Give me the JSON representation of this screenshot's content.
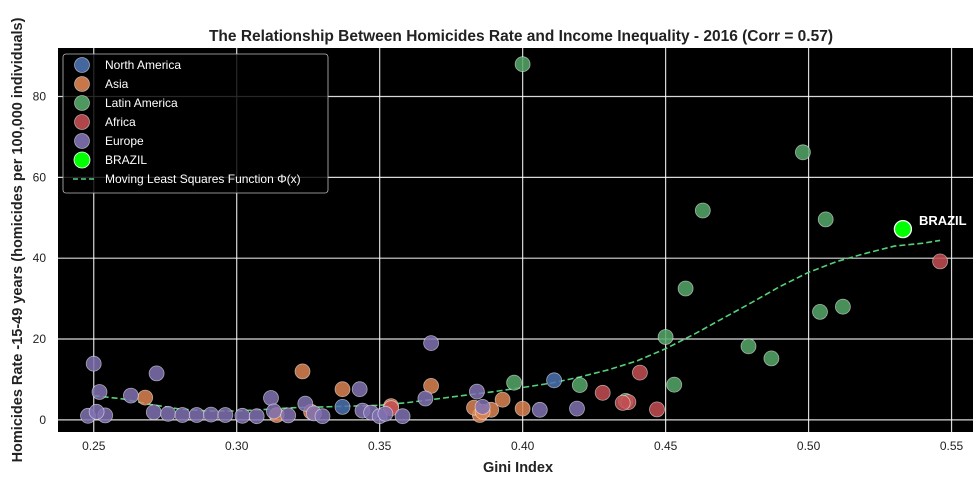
{
  "chart_data": {
    "type": "scatter",
    "title": "The Relationship Between Homicides Rate and Income Inequality - 2016 (Corr = 0.57)",
    "xlabel": "Gini Index",
    "ylabel": "Homicides Rate -15-49 years (homicides per 100,000 individuals)",
    "xlim": [
      0.2375,
      0.5575
    ],
    "ylim": [
      -3,
      92
    ],
    "xticks": [
      0.25,
      0.3,
      0.35,
      0.4,
      0.45,
      0.5,
      0.55
    ],
    "xtick_labels": [
      "0.25",
      "0.30",
      "0.35",
      "0.40",
      "0.45",
      "0.50",
      "0.55"
    ],
    "yticks": [
      0,
      20,
      40,
      60,
      80
    ],
    "ytick_labels": [
      "0",
      "20",
      "40",
      "60",
      "80"
    ],
    "grid": true,
    "background": "#000000",
    "legend_position": "top-left",
    "series": [
      {
        "name": "North America",
        "color": "#4c72b0",
        "points": [
          [
            0.411,
            9.8
          ],
          [
            0.337,
            3.2
          ]
        ]
      },
      {
        "name": "Asia",
        "color": "#dd8452",
        "points": [
          [
            0.268,
            5.5
          ],
          [
            0.323,
            12.0
          ],
          [
            0.337,
            7.6
          ],
          [
            0.368,
            8.4
          ],
          [
            0.385,
            1.2
          ],
          [
            0.393,
            5.0
          ],
          [
            0.4,
            2.8
          ],
          [
            0.389,
            2.5
          ],
          [
            0.314,
            1.2
          ],
          [
            0.326,
            2.0
          ],
          [
            0.354,
            3.4
          ],
          [
            0.383,
            3.0
          ],
          [
            0.386,
            2.0
          ]
        ]
      },
      {
        "name": "Latin America",
        "color": "#55a868",
        "points": [
          [
            0.4,
            88.0
          ],
          [
            0.498,
            66.2
          ],
          [
            0.463,
            51.8
          ],
          [
            0.506,
            49.6
          ],
          [
            0.457,
            32.5
          ],
          [
            0.512,
            28.0
          ],
          [
            0.504,
            26.7
          ],
          [
            0.45,
            20.5
          ],
          [
            0.479,
            18.2
          ],
          [
            0.487,
            15.2
          ],
          [
            0.397,
            9.2
          ],
          [
            0.453,
            8.7
          ],
          [
            0.42,
            8.6
          ],
          [
            0.436,
            4.7
          ]
        ]
      },
      {
        "name": "Africa",
        "color": "#c44e52",
        "points": [
          [
            0.546,
            39.2
          ],
          [
            0.441,
            11.7
          ],
          [
            0.428,
            6.7
          ],
          [
            0.437,
            4.4
          ],
          [
            0.435,
            4.2
          ],
          [
            0.447,
            2.6
          ],
          [
            0.354,
            2.9
          ]
        ]
      },
      {
        "name": "Europe",
        "color": "#8172b3",
        "points": [
          [
            0.25,
            13.9
          ],
          [
            0.252,
            6.9
          ],
          [
            0.263,
            6.0
          ],
          [
            0.272,
            11.5
          ],
          [
            0.254,
            1.1
          ],
          [
            0.248,
            1.0
          ],
          [
            0.251,
            2.0
          ],
          [
            0.271,
            1.9
          ],
          [
            0.276,
            1.5
          ],
          [
            0.281,
            1.2
          ],
          [
            0.286,
            1.2
          ],
          [
            0.291,
            1.3
          ],
          [
            0.296,
            1.2
          ],
          [
            0.302,
            1.0
          ],
          [
            0.307,
            0.9
          ],
          [
            0.312,
            5.4
          ],
          [
            0.313,
            2.1
          ],
          [
            0.318,
            1.1
          ],
          [
            0.324,
            4.0
          ],
          [
            0.327,
            1.6
          ],
          [
            0.33,
            0.9
          ],
          [
            0.343,
            7.6
          ],
          [
            0.344,
            2.3
          ],
          [
            0.347,
            1.8
          ],
          [
            0.35,
            0.9
          ],
          [
            0.352,
            1.5
          ],
          [
            0.358,
            0.9
          ],
          [
            0.366,
            5.3
          ],
          [
            0.368,
            19.0
          ],
          [
            0.384,
            7.0
          ],
          [
            0.386,
            3.2
          ],
          [
            0.406,
            2.5
          ],
          [
            0.419,
            2.8
          ]
        ]
      },
      {
        "name": "BRAZIL",
        "color": "#00ff00",
        "points": [
          [
            0.533,
            47.2
          ]
        ]
      }
    ],
    "curve": {
      "name": "Moving Least Squares Function Φ(x)",
      "color": "#55d07a",
      "style": "dashed",
      "points": [
        [
          0.25,
          6.0
        ],
        [
          0.26,
          5.2
        ],
        [
          0.27,
          3.8
        ],
        [
          0.28,
          2.7
        ],
        [
          0.29,
          2.2
        ],
        [
          0.3,
          2.2
        ],
        [
          0.31,
          2.6
        ],
        [
          0.32,
          3.0
        ],
        [
          0.33,
          3.2
        ],
        [
          0.34,
          3.4
        ],
        [
          0.35,
          3.6
        ],
        [
          0.36,
          4.3
        ],
        [
          0.37,
          5.2
        ],
        [
          0.38,
          6.1
        ],
        [
          0.39,
          7.0
        ],
        [
          0.4,
          8.0
        ],
        [
          0.41,
          9.1
        ],
        [
          0.42,
          10.6
        ],
        [
          0.43,
          12.4
        ],
        [
          0.44,
          14.6
        ],
        [
          0.45,
          17.6
        ],
        [
          0.46,
          21.2
        ],
        [
          0.47,
          25.1
        ],
        [
          0.48,
          29.0
        ],
        [
          0.49,
          33.0
        ],
        [
          0.5,
          36.5
        ],
        [
          0.51,
          39.2
        ],
        [
          0.52,
          41.2
        ],
        [
          0.53,
          43.0
        ],
        [
          0.54,
          43.7
        ],
        [
          0.546,
          44.4
        ]
      ]
    },
    "annotations": [
      {
        "text": "BRAZIL",
        "x": 0.533,
        "y": 47.2
      }
    ],
    "legend": [
      {
        "label": "North America",
        "color": "#4c72b0",
        "kind": "marker"
      },
      {
        "label": "Asia",
        "color": "#dd8452",
        "kind": "marker"
      },
      {
        "label": "Latin America",
        "color": "#55a868",
        "kind": "marker"
      },
      {
        "label": "Africa",
        "color": "#c44e52",
        "kind": "marker"
      },
      {
        "label": "Europe",
        "color": "#8172b3",
        "kind": "marker"
      },
      {
        "label": "BRAZIL",
        "color": "#00ff00",
        "kind": "marker"
      },
      {
        "label": "Moving Least Squares Function Φ(x)",
        "color": "#55d07a",
        "kind": "line"
      }
    ]
  }
}
